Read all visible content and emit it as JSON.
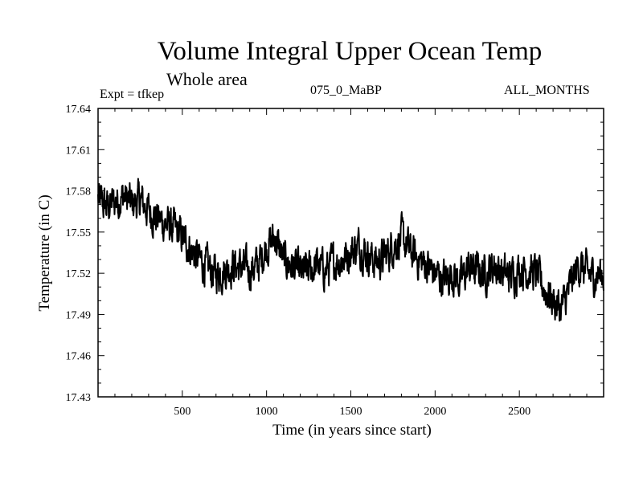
{
  "chart_data": {
    "type": "line",
    "title": "Volume Integral Upper Ocean Temp",
    "subtitle": "Whole area",
    "annotations": {
      "expt": "Expt = tfkep",
      "run": "075_0_MaBP",
      "months": "ALL_MONTHS"
    },
    "xlabel": "Time (in years since start)",
    "ylabel": "Temperature (in C)",
    "xlim": [
      0,
      3000
    ],
    "ylim": [
      17.43,
      17.64
    ],
    "xticks": [
      500,
      1000,
      1500,
      2000,
      2500
    ],
    "yticks": [
      "17.43",
      "17.46",
      "17.49",
      "17.52",
      "17.55",
      "17.58",
      "17.61",
      "17.64"
    ],
    "grid": false,
    "line_color": "#000000",
    "series": [
      {
        "x": [
          0,
          50,
          100,
          150,
          200,
          250,
          300,
          350,
          400,
          450,
          500,
          550,
          600,
          650,
          700,
          750,
          800,
          850,
          900,
          950,
          1000,
          1050,
          1100,
          1150,
          1200,
          1250,
          1300,
          1350,
          1400,
          1450,
          1500,
          1550,
          1600,
          1650,
          1700,
          1750,
          1800,
          1850,
          1900,
          1950,
          2000,
          2050,
          2100,
          2150,
          2200,
          2250,
          2300,
          2350,
          2400,
          2450,
          2500,
          2550,
          2600,
          2650,
          2700,
          2750,
          2800,
          2850,
          2900,
          2950,
          3000
        ],
        "values": [
          17.574,
          17.568,
          17.572,
          17.576,
          17.57,
          17.573,
          17.566,
          17.56,
          17.556,
          17.552,
          17.546,
          17.538,
          17.53,
          17.524,
          17.52,
          17.522,
          17.526,
          17.524,
          17.522,
          17.526,
          17.54,
          17.546,
          17.53,
          17.526,
          17.52,
          17.522,
          17.526,
          17.522,
          17.528,
          17.53,
          17.536,
          17.54,
          17.534,
          17.528,
          17.532,
          17.54,
          17.546,
          17.536,
          17.53,
          17.526,
          17.52,
          17.516,
          17.52,
          17.514,
          17.524,
          17.522,
          17.52,
          17.526,
          17.52,
          17.518,
          17.524,
          17.522,
          17.52,
          17.508,
          17.5,
          17.494,
          17.51,
          17.526,
          17.52,
          17.518,
          17.52
        ]
      }
    ]
  }
}
